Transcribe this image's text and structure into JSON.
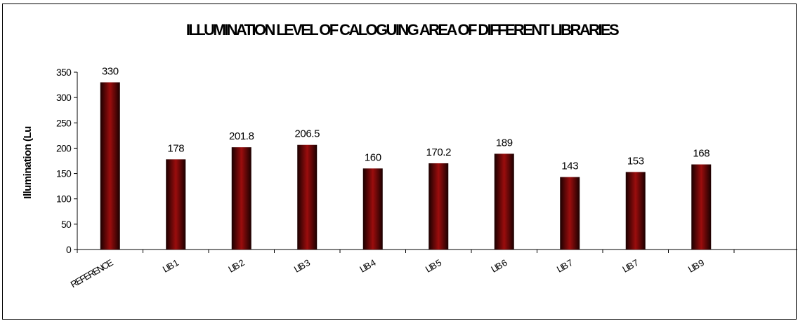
{
  "chart_data": {
    "type": "bar",
    "title": "ILLUMINATION LEVEL OF CALOGUING AREA OF DIFFERENT LIBRARIES",
    "ylabel": "Illumination (Lu",
    "xlabel": "",
    "categories": [
      "REFERENCE",
      "LIB 1",
      "LIB 2",
      "LIB 3",
      "LIB 4",
      "LIB 5",
      "LIB 6",
      "LIB 7",
      "LIB 7",
      "LIB 9"
    ],
    "values": [
      330,
      178,
      201.8,
      206.5,
      160,
      170.2,
      189,
      143,
      153,
      168
    ],
    "data_labels": [
      "330",
      "178",
      "201.8",
      "206.5",
      "160",
      "170.2",
      "189",
      "143",
      "153",
      "168"
    ],
    "y_ticks": [
      "0",
      "50",
      "100",
      "150",
      "200",
      "250",
      "300",
      "350"
    ],
    "ylim": [
      0,
      350
    ],
    "grid": false,
    "legend": "none",
    "bar_color_center": "#9b0d0d",
    "bar_color_edge": "#1a0000"
  }
}
